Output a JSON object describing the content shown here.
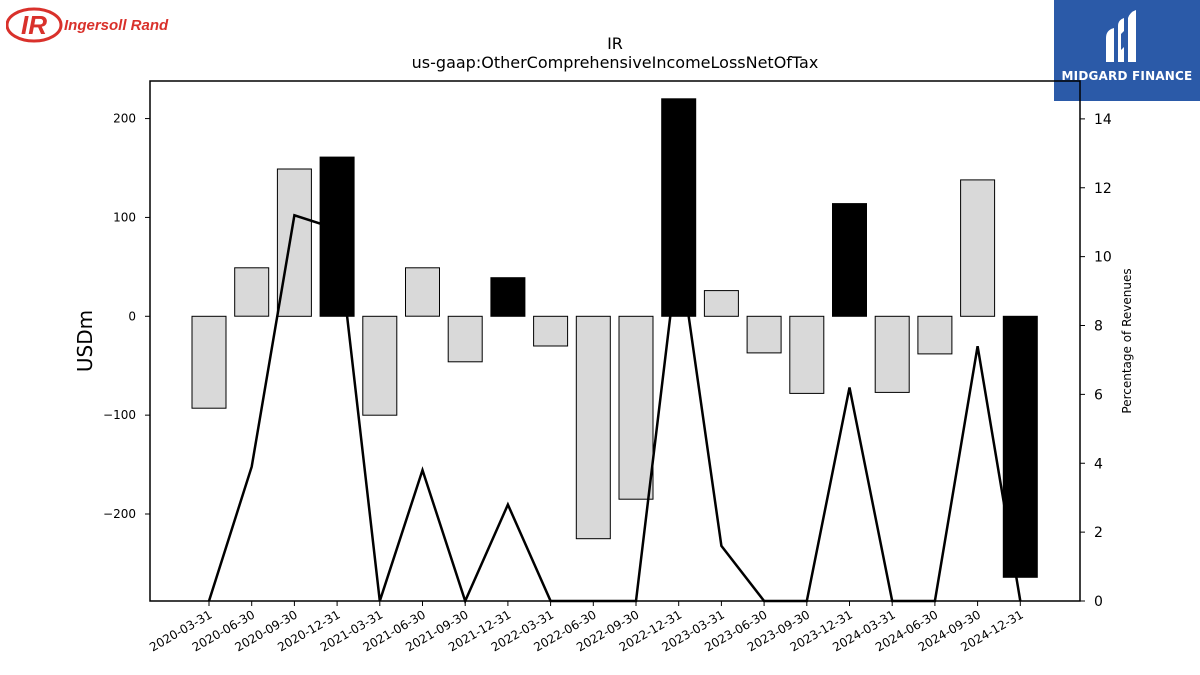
{
  "logos": {
    "company_mark": "IR",
    "company_name": "Ingersoll Rand",
    "company_color": "#d9312b",
    "brand_name": "MIDGARD FINANCE",
    "brand_color": "#2b5aa8"
  },
  "chart_data": {
    "type": "bar",
    "title": "IR",
    "subtitle": "us-gaap:OtherComprehensiveIncomeLossNetOfTax",
    "ylabel": "USDm",
    "y2label": "Percentage of Revenues",
    "ylim": [
      -288,
      238
    ],
    "y2lim": [
      0,
      15.1
    ],
    "yticks": [
      -200,
      -100,
      0,
      100,
      200
    ],
    "y2ticks": [
      0,
      2,
      4,
      6,
      8,
      10,
      12,
      14
    ],
    "categories": [
      "2020-03-31",
      "2020-06-30",
      "2020-09-30",
      "2020-12-31",
      "2021-03-31",
      "2021-06-30",
      "2021-09-30",
      "2021-12-31",
      "2022-03-31",
      "2022-06-30",
      "2022-09-30",
      "2022-12-31",
      "2023-03-31",
      "2023-06-30",
      "2023-09-30",
      "2023-12-31",
      "2024-03-31",
      "2024-06-30",
      "2024-09-30",
      "2024-12-31"
    ],
    "series": [
      {
        "kind": "bar",
        "values": [
          -93,
          49,
          149,
          161,
          -100,
          49,
          -46,
          39,
          -30,
          -225,
          -185,
          220,
          26,
          -37,
          -78,
          114,
          -77,
          -38,
          138,
          -264
        ],
        "highlight": [
          false,
          false,
          false,
          true,
          false,
          false,
          false,
          true,
          false,
          false,
          false,
          true,
          false,
          false,
          false,
          true,
          false,
          false,
          false,
          true
        ]
      },
      {
        "kind": "line",
        "axis": "right",
        "values": [
          0,
          3.9,
          11.2,
          10.8,
          0,
          3.8,
          0,
          2.8,
          0,
          0,
          0,
          10.3,
          1.6,
          0,
          0,
          6.2,
          0,
          0,
          7.4,
          0
        ]
      }
    ],
    "colors": {
      "bar": "#d9d9d9",
      "bar_highlight": "#000000",
      "line": "#000000"
    },
    "grid": false
  }
}
